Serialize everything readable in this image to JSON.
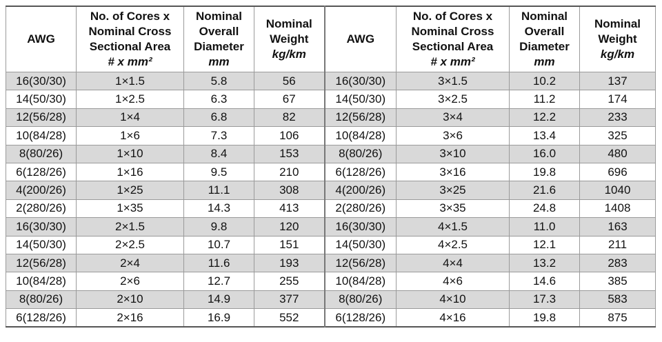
{
  "table": {
    "header": [
      {
        "title": [
          "AWG"
        ]
      },
      {
        "title": [
          "No. of Cores x",
          "Nominal Cross",
          "Sectional Area"
        ],
        "unit": "# x mm²"
      },
      {
        "title": [
          "Nominal",
          "Overall",
          "Diameter"
        ],
        "unit": "mm"
      },
      {
        "title": [
          "Nominal",
          "Weight"
        ],
        "unit": "kg/km"
      },
      {
        "title": [
          "AWG"
        ]
      },
      {
        "title": [
          "No. of Cores x",
          "Nominal Cross",
          "Sectional Area"
        ],
        "unit": "# x mm²"
      },
      {
        "title": [
          "Nominal",
          "Overall",
          "Diameter"
        ],
        "unit": "mm"
      },
      {
        "title": [
          "Nominal",
          "Weight"
        ],
        "unit": "kg/km"
      }
    ],
    "rows": [
      [
        "16(30/30)",
        "1×1.5",
        "5.8",
        "56",
        "16(30/30)",
        "3×1.5",
        "10.2",
        "137"
      ],
      [
        "14(50/30)",
        "1×2.5",
        "6.3",
        "67",
        "14(50/30)",
        "3×2.5",
        "11.2",
        "174"
      ],
      [
        "12(56/28)",
        "1×4",
        "6.8",
        "82",
        "12(56/28)",
        "3×4",
        "12.2",
        "233"
      ],
      [
        "10(84/28)",
        "1×6",
        "7.3",
        "106",
        "10(84/28)",
        "3×6",
        "13.4",
        "325"
      ],
      [
        "8(80/26)",
        "1×10",
        "8.4",
        "153",
        "8(80/26)",
        "3×10",
        "16.0",
        "480"
      ],
      [
        "6(128/26)",
        "1×16",
        "9.5",
        "210",
        "6(128/26)",
        "3×16",
        "19.8",
        "696"
      ],
      [
        "4(200/26)",
        "1×25",
        "11.1",
        "308",
        "4(200/26)",
        "3×25",
        "21.6",
        "1040"
      ],
      [
        "2(280/26)",
        "1×35",
        "14.3",
        "413",
        "2(280/26)",
        "3×35",
        "24.8",
        "1408"
      ],
      [
        "16(30/30)",
        "2×1.5",
        "9.8",
        "120",
        "16(30/30)",
        "4×1.5",
        "11.0",
        "163"
      ],
      [
        "14(50/30)",
        "2×2.5",
        "10.7",
        "151",
        "14(50/30)",
        "4×2.5",
        "12.1",
        "211"
      ],
      [
        "12(56/28)",
        "2×4",
        "11.6",
        "193",
        "12(56/28)",
        "4×4",
        "13.2",
        "283"
      ],
      [
        "10(84/28)",
        "2×6",
        "12.7",
        "255",
        "10(84/28)",
        "4×6",
        "14.6",
        "385"
      ],
      [
        "8(80/26)",
        "2×10",
        "14.9",
        "377",
        "8(80/26)",
        "4×10",
        "17.3",
        "583"
      ],
      [
        "6(128/26)",
        "2×16",
        "16.9",
        "552",
        "6(128/26)",
        "4×16",
        "19.8",
        "875"
      ]
    ]
  }
}
